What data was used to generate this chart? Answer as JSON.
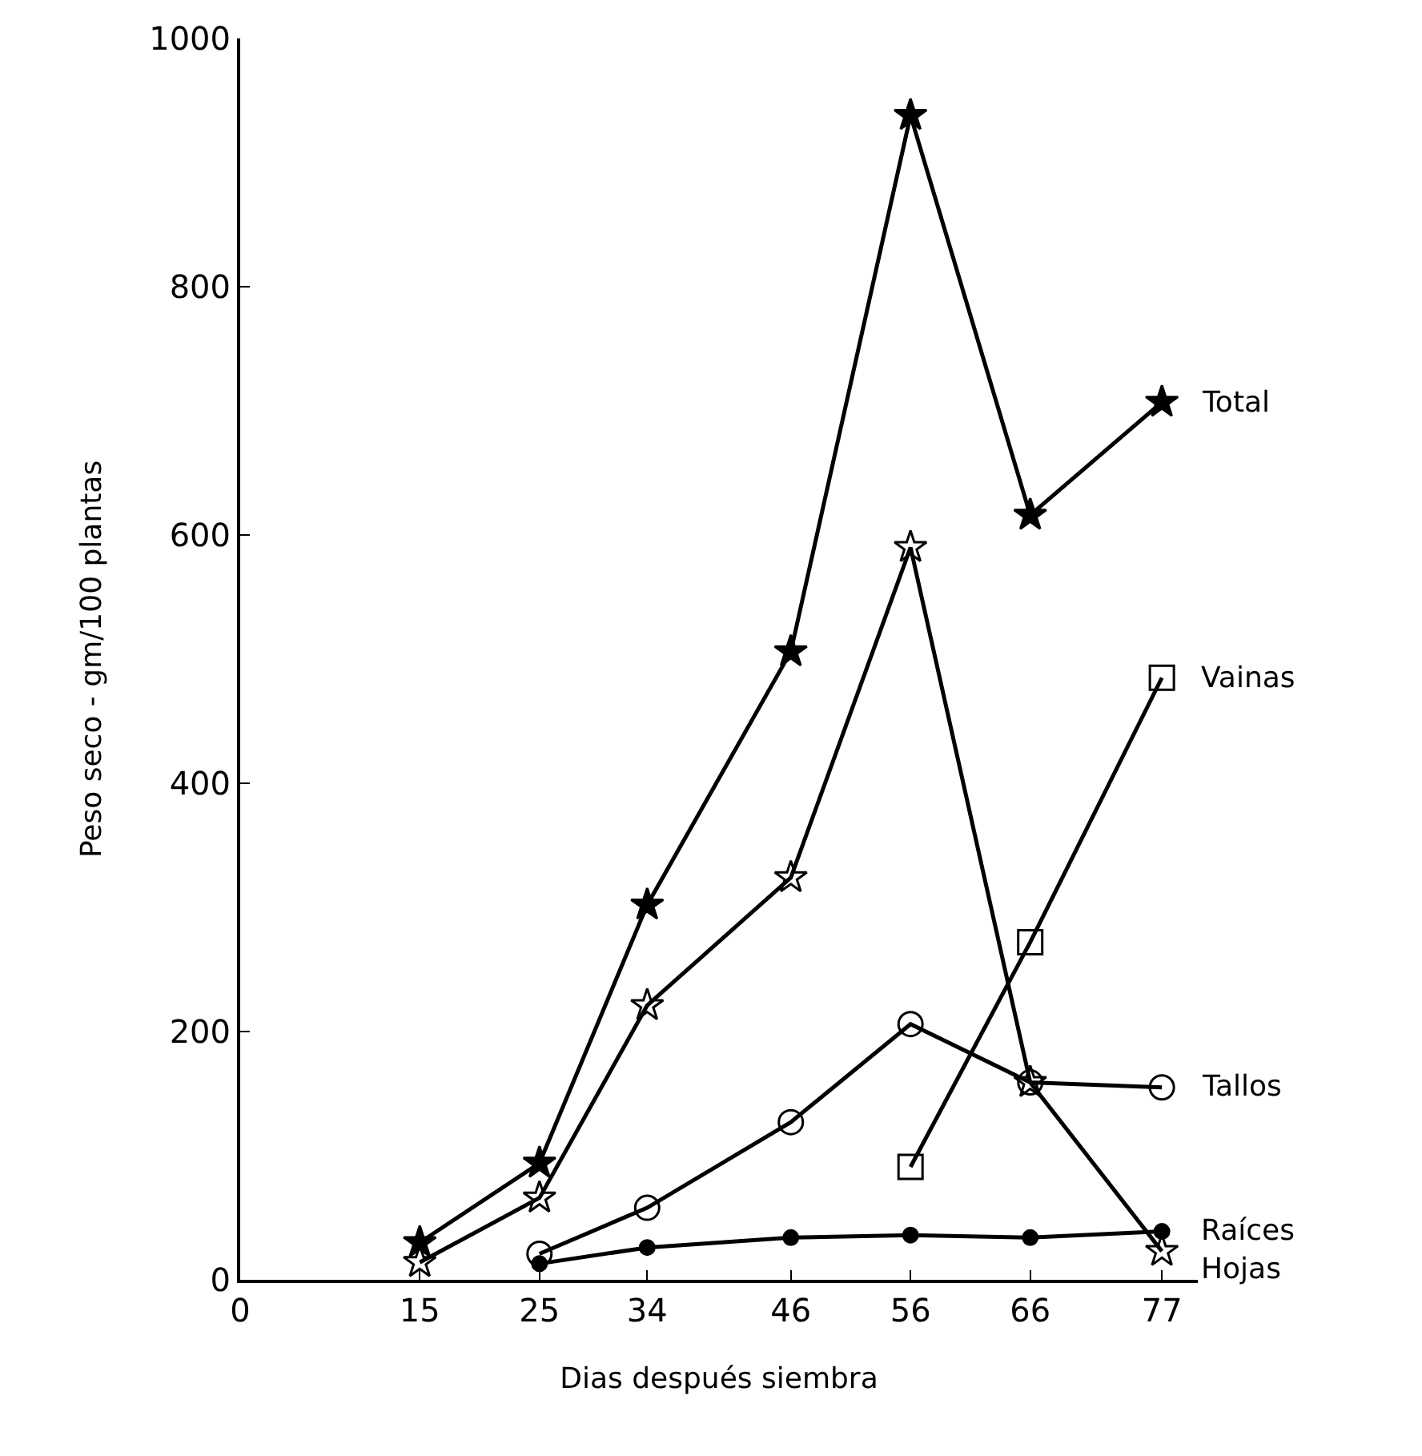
{
  "chart_data": {
    "type": "line",
    "xlabel": "Dias después siembra",
    "ylabel": "Peso seco - gm/100 plantas",
    "xlim": [
      0,
      80
    ],
    "xticks": [
      0,
      15,
      25,
      34,
      46,
      56,
      66,
      77
    ],
    "ylim": [
      0,
      1000
    ],
    "yticks": [
      0,
      200,
      400,
      600,
      800,
      1000
    ],
    "grid": false,
    "legend": false,
    "line_style": "solid",
    "series": [
      {
        "name": "Total",
        "color": "#000000",
        "marker": "star",
        "x": [
          15,
          25,
          34,
          46,
          56,
          66,
          77
        ],
        "values": [
          30,
          94,
          302,
          506,
          938,
          616,
          707
        ]
      },
      {
        "name": "Vainas",
        "color": "#000000",
        "marker": "square",
        "x": [
          56,
          66,
          77
        ],
        "values": [
          91,
          272,
          485
        ]
      },
      {
        "name": "Tallos",
        "color": "#000000",
        "marker": "circle",
        "x": [
          25,
          34,
          46,
          56,
          66,
          77
        ],
        "values": [
          21,
          58,
          127,
          206,
          159,
          155
        ]
      },
      {
        "name": "Raíces",
        "color": "#000000",
        "marker": "circle",
        "x": [
          25,
          34,
          46,
          56,
          66,
          77
        ],
        "values": [
          13,
          26,
          34,
          36,
          34,
          39
        ]
      },
      {
        "name": "Hojas",
        "color": "#000000",
        "marker": "star",
        "x": [
          15,
          25,
          34,
          46,
          56,
          66,
          77
        ],
        "values": [
          14,
          66,
          221,
          324,
          590,
          159,
          23
        ]
      }
    ]
  }
}
